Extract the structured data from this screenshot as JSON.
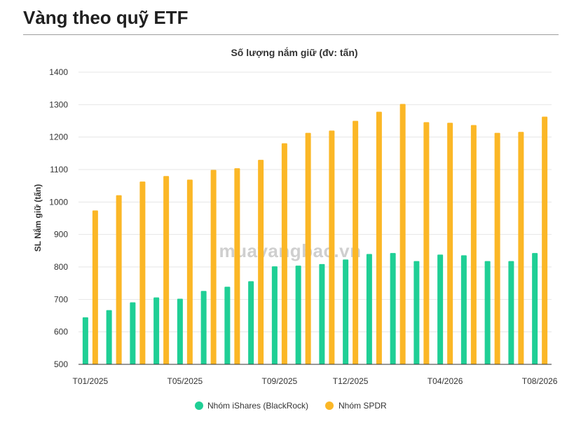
{
  "header": {
    "title": "Vàng theo quỹ ETF"
  },
  "watermark": "muavangbac.vn",
  "chart_data": {
    "type": "bar",
    "title": "Số lượng nắm giữ (đv: tấn)",
    "ylabel": "SL Nắm giữ (tấn)",
    "xlabel": "",
    "ylim": [
      500,
      1400
    ],
    "yticks": [
      500,
      600,
      700,
      800,
      900,
      1000,
      1100,
      1200,
      1300,
      1400
    ],
    "grid": true,
    "legend_position": "bottom",
    "categories": [
      "T01/2025",
      "T02/2025",
      "T03/2025",
      "T04/2025",
      "T05/2025",
      "T06/2025",
      "T07/2025",
      "T08/2025",
      "T09/2025",
      "T10/2025",
      "T11/2025",
      "T12/2025",
      "T01/2026",
      "T02/2026",
      "T03/2026",
      "T04/2026",
      "T05/2026",
      "T06/2026",
      "T07/2026",
      "T08/2026"
    ],
    "xtick_labels": [
      {
        "index": 0,
        "label": "T01/2025"
      },
      {
        "index": 4,
        "label": "T05/2025"
      },
      {
        "index": 8,
        "label": "T09/2025"
      },
      {
        "index": 11,
        "label": "T12/2025"
      },
      {
        "index": 15,
        "label": "T04/2026"
      },
      {
        "index": 19,
        "label": "T08/2026"
      }
    ],
    "series": [
      {
        "name": "Nhóm iShares (BlackRock)",
        "color": "#1fcf95",
        "values": [
          645,
          667,
          691,
          706,
          702,
          726,
          739,
          756,
          802,
          804,
          809,
          823,
          840,
          843,
          818,
          838,
          836,
          818,
          818,
          843
        ]
      },
      {
        "name": "Nhóm SPDR",
        "color": "#fbb726",
        "values": [
          974,
          1021,
          1063,
          1080,
          1069,
          1099,
          1104,
          1130,
          1181,
          1213,
          1220,
          1250,
          1278,
          1302,
          1246,
          1244,
          1237,
          1213,
          1216,
          1263
        ]
      }
    ]
  }
}
